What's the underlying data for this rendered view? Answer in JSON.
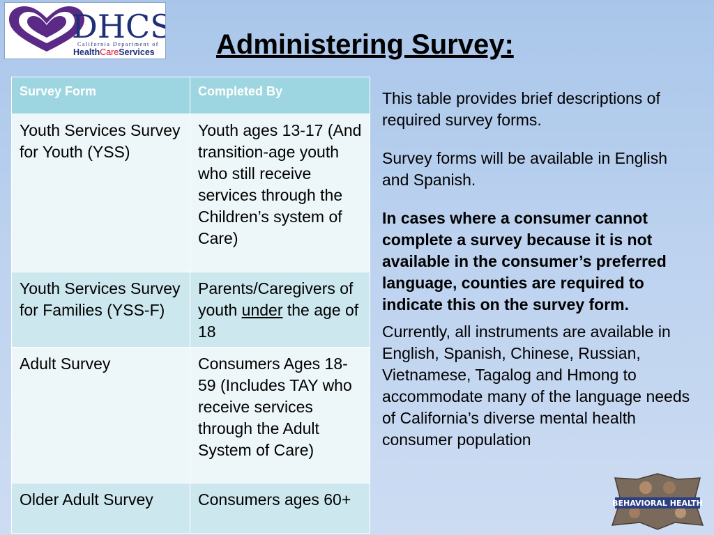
{
  "logo": {
    "name": "DHCS",
    "tagline": "California Department of",
    "health": "Health",
    "care": "Care",
    "services": "Services",
    "colors": {
      "purple": "#5b2a86",
      "navy": "#1e2f78",
      "red": "#c8102e"
    }
  },
  "slide": {
    "title": "Administering Survey:"
  },
  "table": {
    "headers": [
      "Survey Form",
      "Completed By"
    ],
    "rows": [
      {
        "form": "Youth Services Survey for Youth (YSS)",
        "completed_by": "Youth ages 13-17 (And transition-age youth who still receive services through the Children’s system of Care)"
      },
      {
        "form": "Youth Services Survey for Families (YSS-F)",
        "completed_by_pre": "Parents/Caregivers of youth ",
        "completed_by_emph": "under",
        "completed_by_post": " the age of 18"
      },
      {
        "form": "Adult Survey",
        "completed_by": "Consumers Ages 18-59 (Includes TAY who receive services through the Adult System of Care)"
      },
      {
        "form": "Older Adult Survey",
        "completed_by": "Consumers ages 60+"
      }
    ],
    "colors": {
      "header": "#9dd6e0",
      "row_light": "#edf6f8",
      "row_dark": "#cce8ee"
    }
  },
  "notes": [
    "This table provides brief descriptions of required survey forms.",
    "Survey forms will be available in English and Spanish.",
    "In cases where a consumer cannot complete a survey because it is not available in the consumer’s preferred language, counties are required to indicate this on the survey form.",
    "Currently, all instruments are available in English, Spanish, Chinese, Russian, Vietnamese, Tagalog and Hmong to accommodate many of the language needs of California’s diverse mental health consumer population"
  ],
  "badge": {
    "text": "BEHAVIORAL HEALTH"
  }
}
